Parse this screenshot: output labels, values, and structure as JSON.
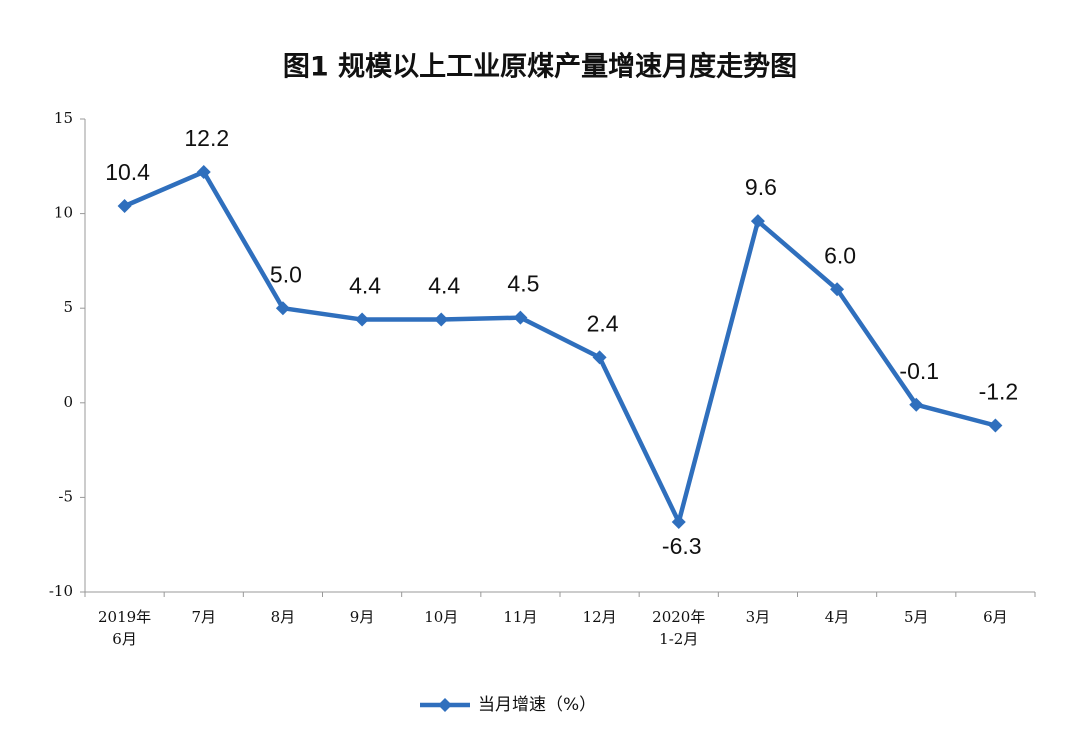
{
  "chart_data": {
    "type": "line",
    "title": "图1  规模以上工业原煤产量增速月度走势图",
    "categories": [
      [
        "2019年",
        "6月"
      ],
      [
        "7月"
      ],
      [
        "8月"
      ],
      [
        "9月"
      ],
      [
        "10月"
      ],
      [
        "11月"
      ],
      [
        "12月"
      ],
      [
        "2020年",
        "1-2月"
      ],
      [
        "3月"
      ],
      [
        "4月"
      ],
      [
        "5月"
      ],
      [
        "6月"
      ]
    ],
    "series": [
      {
        "name": "当月增速（%）",
        "color": "#2f6fbd",
        "values": [
          10.4,
          12.2,
          5.0,
          4.4,
          4.4,
          4.5,
          2.4,
          -6.3,
          9.6,
          6.0,
          -0.1,
          -1.2
        ],
        "value_labels": [
          "10.4",
          "12.2",
          "5.0",
          "4.4",
          "4.4",
          "4.5",
          "2.4",
          "-6.3",
          "9.6",
          "6.0",
          "-0.1",
          "-1.2"
        ]
      }
    ],
    "ylim": [
      -10,
      15
    ],
    "yticks": [
      -10,
      -5,
      0,
      5,
      10,
      15
    ],
    "grid": false,
    "legend": "bottom"
  }
}
